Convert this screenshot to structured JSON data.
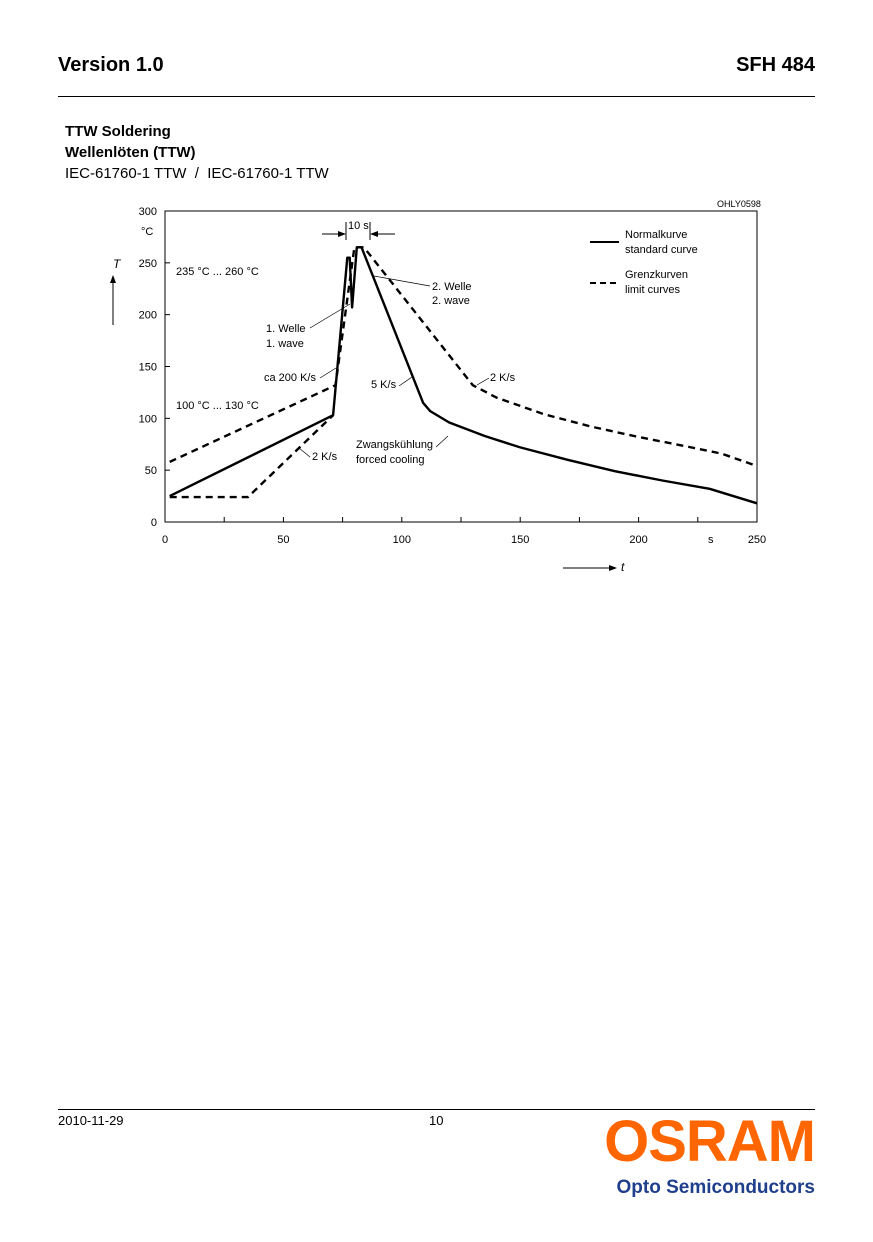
{
  "header": {
    "version": "Version 1.0",
    "part": "SFH 484"
  },
  "section": {
    "title": "TTW Soldering",
    "title_de": "Wellenlöten (TTW)",
    "subtitle": "IEC-61760-1 TTW  /  IEC-61760-1 TTW"
  },
  "chart_data": {
    "type": "line",
    "figure_id": "OHLY0598",
    "xlabel": "t",
    "xunit": "s",
    "ylabel": "T",
    "yunit": "°C",
    "xlim": [
      0,
      250
    ],
    "ylim": [
      0,
      300
    ],
    "xticks": [
      0,
      50,
      100,
      150,
      200,
      250
    ],
    "yticks": [
      0,
      50,
      100,
      150,
      200,
      250,
      300
    ],
    "grid": false,
    "legend_position": "top-right",
    "legend": [
      {
        "label": "Normalkurve",
        "label2": "standard curve",
        "style": "solid"
      },
      {
        "label": "Grenzkurven",
        "label2": "limit curves",
        "style": "dashed"
      }
    ],
    "series": [
      {
        "name": "Normalkurve",
        "style": "solid",
        "points": [
          [
            2,
            25
          ],
          [
            71,
            103
          ],
          [
            77,
            255
          ],
          [
            78,
            255
          ],
          [
            79,
            207
          ],
          [
            81,
            265
          ],
          [
            83,
            265
          ],
          [
            109,
            115
          ],
          [
            112,
            107
          ],
          [
            120,
            96
          ],
          [
            135,
            83
          ],
          [
            150,
            72
          ],
          [
            170,
            60
          ],
          [
            190,
            49
          ],
          [
            210,
            40
          ],
          [
            230,
            32
          ],
          [
            250,
            18
          ]
        ]
      },
      {
        "name": "Grenzkurven",
        "style": "dashed",
        "points": [
          [
            2,
            58
          ],
          [
            72,
            132
          ],
          [
            80,
            265
          ],
          [
            84,
            265
          ],
          [
            130,
            132
          ],
          [
            140,
            120
          ],
          [
            160,
            104
          ],
          [
            180,
            92
          ],
          [
            200,
            82
          ],
          [
            220,
            73
          ],
          [
            235,
            66
          ],
          [
            250,
            54
          ]
        ]
      },
      {
        "name": "Grenzkurven",
        "style": "dashed",
        "points": [
          [
            2,
            24
          ],
          [
            35,
            24
          ],
          [
            71,
            103
          ]
        ]
      }
    ],
    "annotations": {
      "window": "10 s",
      "peak_range": "235 °C ... 260 °C",
      "preheat_range": "100 °C ... 130 °C",
      "wave1_de": "1. Welle",
      "wave1_en": "1. wave",
      "wave2_de": "2. Welle",
      "wave2_en": "2. wave",
      "ramp_up": "ca 200 K/s",
      "cool_std": "5 K/s",
      "cool_limit": "2 K/s",
      "heat_limit": "2 K/s",
      "forced_de": "Zwangskühlung",
      "forced_en": "forced cooling"
    }
  },
  "footer": {
    "date": "2010-11-29",
    "page": "10"
  },
  "logo": {
    "brand": "OSRAM",
    "division": "Opto Semiconductors",
    "brand_color": "#ff6600",
    "division_color": "#1f3f8c"
  }
}
